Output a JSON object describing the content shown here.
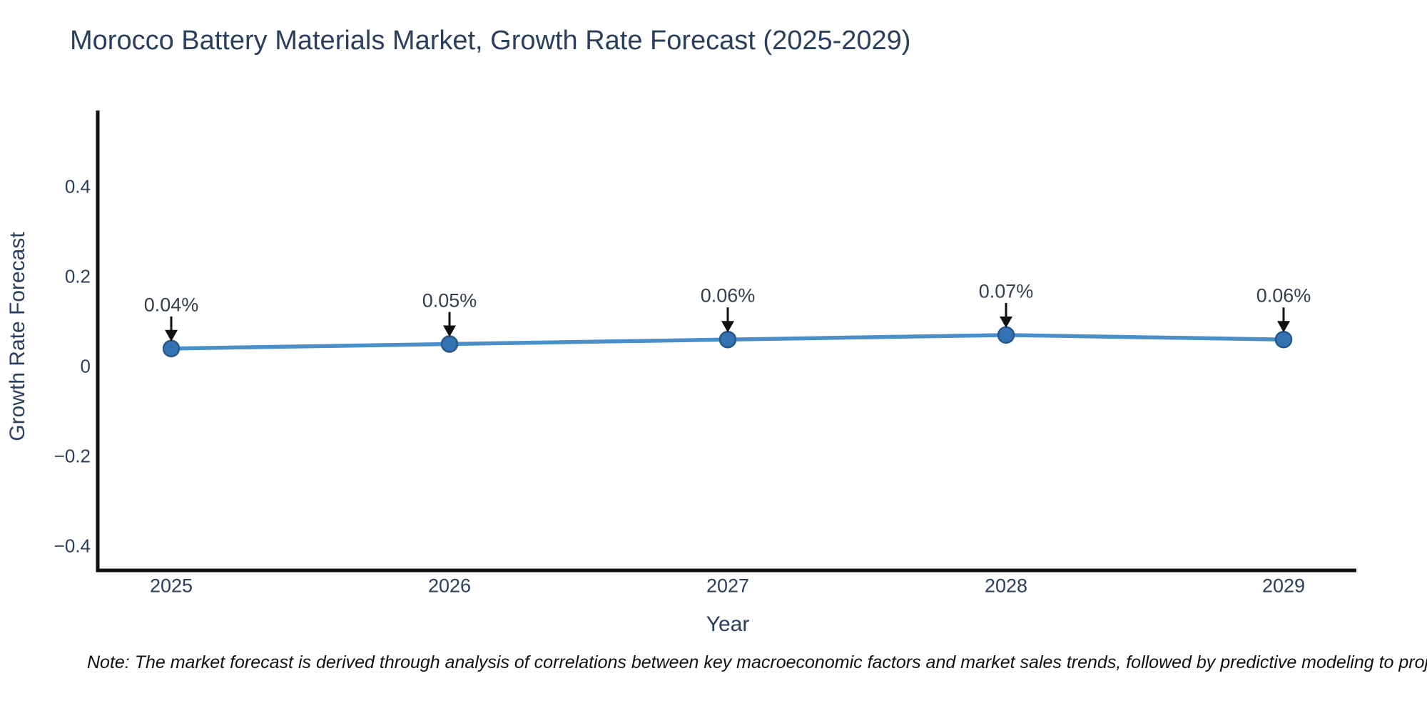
{
  "chart_data": {
    "type": "line",
    "title": "Morocco Battery Materials Market, Growth Rate Forecast (2025-2029)",
    "xlabel": "Year",
    "ylabel": "Growth Rate Forecast",
    "categories": [
      "2025",
      "2026",
      "2027",
      "2028",
      "2029"
    ],
    "values": [
      0.04,
      0.05,
      0.06,
      0.07,
      0.06
    ],
    "point_labels": [
      "0.04%",
      "0.05%",
      "0.06%",
      "0.07%",
      "0.06%"
    ],
    "y_ticks": [
      "0.4",
      "0.2",
      "0",
      "−0.2",
      "−0.4"
    ],
    "y_tick_values": [
      0.4,
      0.2,
      0,
      -0.2,
      -0.4
    ],
    "ylim": [
      -0.45,
      0.57
    ],
    "grid": false,
    "legend": false,
    "line_color": "#4a8fc7",
    "marker_color": "#3572b3",
    "marker_edge_color": "#27588b",
    "arrow_color": "#111111",
    "axis_line_color": "#111111",
    "text_color": "#2a3f5f",
    "note": "Note: The market forecast is derived through analysis of correlations between key macroeconomic factors and market sales trends, followed by predictive modeling to project future sa"
  }
}
